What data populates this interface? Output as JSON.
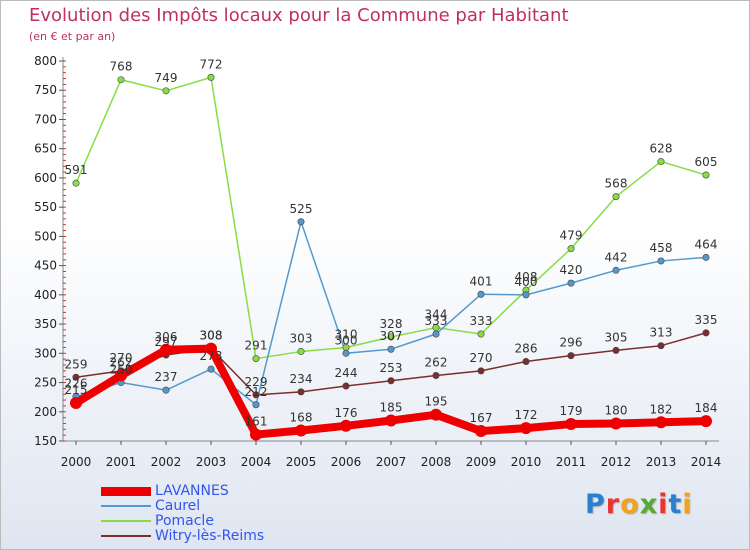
{
  "title": "Evolution des Impôts locaux pour la Commune par Habitant",
  "subtitle": "(en € et par an)",
  "logo": {
    "text": "Proxiti",
    "colors": [
      "#2a7fd0",
      "#e8352e",
      "#f2a31b",
      "#5aa832",
      "#e8352e",
      "#2a7fd0",
      "#f2a31b"
    ]
  },
  "chart_data": {
    "type": "line",
    "title": "Evolution des Impôts locaux pour la Commune par Habitant",
    "subtitle": "(en € et par an)",
    "x": [
      "2000",
      "2001",
      "2002",
      "2003",
      "2004",
      "2005",
      "2006",
      "2007",
      "2008",
      "2009",
      "2010",
      "2011",
      "2012",
      "2013",
      "2014"
    ],
    "yticks": [
      "150",
      "200",
      "250",
      "300",
      "350",
      "400",
      "450",
      "500",
      "550",
      "600",
      "650",
      "700",
      "750",
      "800"
    ],
    "ylim": [
      150,
      800
    ],
    "grid": false,
    "legend_position": "bottom-left",
    "series": [
      {
        "name": "Pomacle",
        "color": "#88dd44",
        "values": [
          591,
          768,
          749,
          772,
          291,
          303,
          310,
          328,
          344,
          333,
          408,
          479,
          568,
          628,
          605
        ]
      },
      {
        "name": "Caurel",
        "color": "#5599cc",
        "values": [
          226,
          250,
          237,
          273,
          212,
          525,
          300,
          307,
          333,
          401,
          400,
          420,
          442,
          458,
          464
        ]
      },
      {
        "name": "Witry-lès-Reims",
        "color": "#7a2e2e",
        "values": [
          259,
          270,
          297,
          308,
          229,
          234,
          244,
          253,
          262,
          270,
          286,
          296,
          305,
          313,
          335
        ]
      },
      {
        "name": "LAVANNES",
        "color": "#ee0000",
        "values": [
          215,
          262,
          306,
          308,
          161,
          168,
          176,
          185,
          195,
          167,
          172,
          179,
          180,
          182,
          184
        ]
      }
    ]
  }
}
